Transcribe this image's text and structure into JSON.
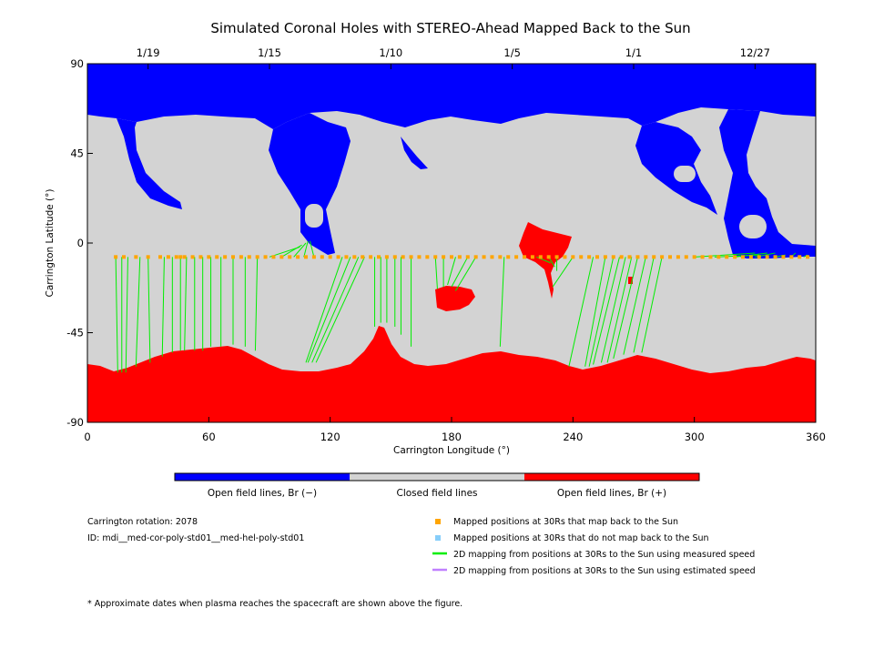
{
  "chart_data": {
    "type": "map",
    "title": "Simulated Coronal Holes with STEREO-Ahead Mapped Back to the Sun",
    "xlabel": "Carrington Longitude (°)",
    "ylabel": "Carrington Latitude (°)",
    "xlim": [
      0,
      360
    ],
    "ylim": [
      -90,
      90
    ],
    "x_ticks": [
      "0",
      "60",
      "120",
      "180",
      "240",
      "300",
      "360"
    ],
    "x_tick_values": [
      0,
      60,
      120,
      180,
      240,
      300,
      360
    ],
    "y_ticks": [
      "90",
      "45",
      "0",
      "-45",
      "-90"
    ],
    "y_tick_values": [
      90,
      45,
      0,
      -45,
      -90
    ],
    "date_ticks": [
      {
        "label": "1/19",
        "lon": 30
      },
      {
        "label": "1/15",
        "lon": 90
      },
      {
        "label": "1/10",
        "lon": 150
      },
      {
        "label": "1/5",
        "lon": 210
      },
      {
        "label": "1/1",
        "lon": 270
      },
      {
        "label": "12/27",
        "lon": 330
      }
    ],
    "colorbar": {
      "colors": [
        "#0000ff",
        "#d3d3d3",
        "#ff0000"
      ],
      "labels": [
        "Open field lines, Br (−)",
        "Closed field lines",
        "Open field lines, Br (+)"
      ]
    },
    "colors": {
      "negative": "#0000ff",
      "closed": "#d3d3d3",
      "positive": "#ff0000",
      "mapped": "#ffa500",
      "unmapped": "#87cefa",
      "measured": "#00ee00",
      "estimated": "#c080ff"
    },
    "mapped_latitude": -7,
    "mapped_positions_lon": [
      14,
      18,
      24,
      30,
      36,
      40,
      44,
      46,
      48,
      52,
      56,
      60,
      64,
      68,
      72,
      76,
      80,
      84,
      88,
      92,
      96,
      100,
      104,
      108,
      112,
      116,
      120,
      124,
      128,
      132,
      136,
      140,
      144,
      148,
      152,
      156,
      160,
      164,
      168,
      172,
      176,
      180,
      184,
      188,
      192,
      196,
      200,
      204,
      208,
      212,
      216,
      220,
      224,
      228,
      232,
      236,
      240,
      244,
      248,
      252,
      256,
      260,
      264,
      268,
      272,
      276,
      280,
      284,
      288,
      292,
      296,
      300,
      304,
      308,
      312,
      316,
      320,
      324,
      328,
      332,
      336,
      340,
      344,
      348,
      352,
      356
    ],
    "mapping_lines": [
      {
        "from_lon": 14,
        "to_lon": 15,
        "to_lat": -65
      },
      {
        "from_lon": 17,
        "to_lon": 17,
        "to_lat": -65
      },
      {
        "from_lon": 20,
        "to_lon": 19,
        "to_lat": -65
      },
      {
        "from_lon": 26,
        "to_lon": 24,
        "to_lat": -62
      },
      {
        "from_lon": 30,
        "to_lon": 31,
        "to_lat": -60
      },
      {
        "from_lon": 38,
        "to_lon": 37,
        "to_lat": -57
      },
      {
        "from_lon": 42,
        "to_lon": 42,
        "to_lat": -55
      },
      {
        "from_lon": 46,
        "to_lon": 46,
        "to_lat": -54
      },
      {
        "from_lon": 49,
        "to_lon": 48,
        "to_lat": -54
      },
      {
        "from_lon": 53,
        "to_lon": 53,
        "to_lat": -54
      },
      {
        "from_lon": 57,
        "to_lon": 57,
        "to_lat": -54
      },
      {
        "from_lon": 61,
        "to_lon": 61,
        "to_lat": -52
      },
      {
        "from_lon": 66,
        "to_lon": 66,
        "to_lat": -52
      },
      {
        "from_lon": 72,
        "to_lon": 72,
        "to_lat": -51
      },
      {
        "from_lon": 78,
        "to_lon": 78,
        "to_lat": -52
      },
      {
        "from_lon": 84,
        "to_lon": 83,
        "to_lat": -54
      },
      {
        "from_lon": 90,
        "to_lon": 105,
        "to_lat": -2
      },
      {
        "from_lon": 96,
        "to_lon": 106,
        "to_lat": -1
      },
      {
        "from_lon": 102,
        "to_lon": 108,
        "to_lat": 0
      },
      {
        "from_lon": 107,
        "to_lon": 109,
        "to_lat": 1
      },
      {
        "from_lon": 112,
        "to_lon": 110,
        "to_lat": 1
      },
      {
        "from_lon": 126,
        "to_lon": 108,
        "to_lat": -60
      },
      {
        "from_lon": 130,
        "to_lon": 109,
        "to_lat": -60
      },
      {
        "from_lon": 134,
        "to_lon": 111,
        "to_lat": -60
      },
      {
        "from_lon": 137,
        "to_lon": 113,
        "to_lat": -60
      },
      {
        "from_lon": 142,
        "to_lon": 142,
        "to_lat": -42
      },
      {
        "from_lon": 145,
        "to_lon": 145,
        "to_lat": -40
      },
      {
        "from_lon": 148,
        "to_lon": 148,
        "to_lat": -40
      },
      {
        "from_lon": 152,
        "to_lon": 152,
        "to_lat": -42
      },
      {
        "from_lon": 155,
        "to_lon": 155,
        "to_lat": -46
      },
      {
        "from_lon": 160,
        "to_lon": 160,
        "to_lat": -52
      },
      {
        "from_lon": 172,
        "to_lon": 173,
        "to_lat": -23
      },
      {
        "from_lon": 176,
        "to_lon": 176,
        "to_lat": -22
      },
      {
        "from_lon": 182,
        "to_lon": 178,
        "to_lat": -21
      },
      {
        "from_lon": 188,
        "to_lon": 180,
        "to_lat": -22
      },
      {
        "from_lon": 192,
        "to_lon": 182,
        "to_lat": -24
      },
      {
        "from_lon": 206,
        "to_lon": 204,
        "to_lat": -52
      },
      {
        "from_lon": 222,
        "to_lon": 229,
        "to_lat": -10
      },
      {
        "from_lon": 228,
        "to_lon": 231,
        "to_lat": -12
      },
      {
        "from_lon": 232,
        "to_lon": 232,
        "to_lat": -14
      },
      {
        "from_lon": 240,
        "to_lon": 230,
        "to_lat": -22
      },
      {
        "from_lon": 250,
        "to_lon": 238,
        "to_lat": -62
      },
      {
        "from_lon": 256,
        "to_lon": 246,
        "to_lat": -62
      },
      {
        "from_lon": 260,
        "to_lon": 248,
        "to_lat": -62
      },
      {
        "from_lon": 263,
        "to_lon": 250,
        "to_lat": -61
      },
      {
        "from_lon": 266,
        "to_lon": 254,
        "to_lat": -60
      },
      {
        "from_lon": 269,
        "to_lon": 257,
        "to_lat": -60
      },
      {
        "from_lon": 272,
        "to_lon": 260,
        "to_lat": -58
      },
      {
        "from_lon": 276,
        "to_lon": 265,
        "to_lat": -56
      },
      {
        "from_lon": 280,
        "to_lon": 270,
        "to_lat": -55
      },
      {
        "from_lon": 284,
        "to_lon": 274,
        "to_lat": -55
      },
      {
        "from_lon": 300,
        "to_lon": 330,
        "to_lat": -5
      },
      {
        "from_lon": 310,
        "to_lon": 332,
        "to_lat": -6
      },
      {
        "from_lon": 320,
        "to_lon": 336,
        "to_lat": -5
      },
      {
        "from_lon": 330,
        "to_lon": 340,
        "to_lat": -5
      },
      {
        "from_lon": 340,
        "to_lon": 345,
        "to_lat": -6
      },
      {
        "from_lon": 348,
        "to_lon": 350,
        "to_lat": -5
      },
      {
        "from_lon": 354,
        "to_lon": 356,
        "to_lat": -6
      }
    ]
  },
  "info": {
    "rotation": "Carrington rotation: 2078",
    "id": "ID: mdi__med-cor-poly-std01__med-hel-poly-std01"
  },
  "legend": {
    "items": [
      {
        "label": "Mapped positions at 30Rs that map back to the Sun",
        "type": "square",
        "color": "#ffa500"
      },
      {
        "label": "Mapped positions at 30Rs that do not map back to the Sun",
        "type": "square",
        "color": "#87cefa"
      },
      {
        "label": "2D mapping from positions at 30Rs to the Sun using measured speed",
        "type": "line",
        "color": "#00ee00"
      },
      {
        "label": "2D mapping from positions at 30Rs to the Sun using estimated speed",
        "type": "line",
        "color": "#c080ff"
      }
    ]
  },
  "footnote": "* Approximate dates when plasma reaches the spacecraft are shown above the figure."
}
